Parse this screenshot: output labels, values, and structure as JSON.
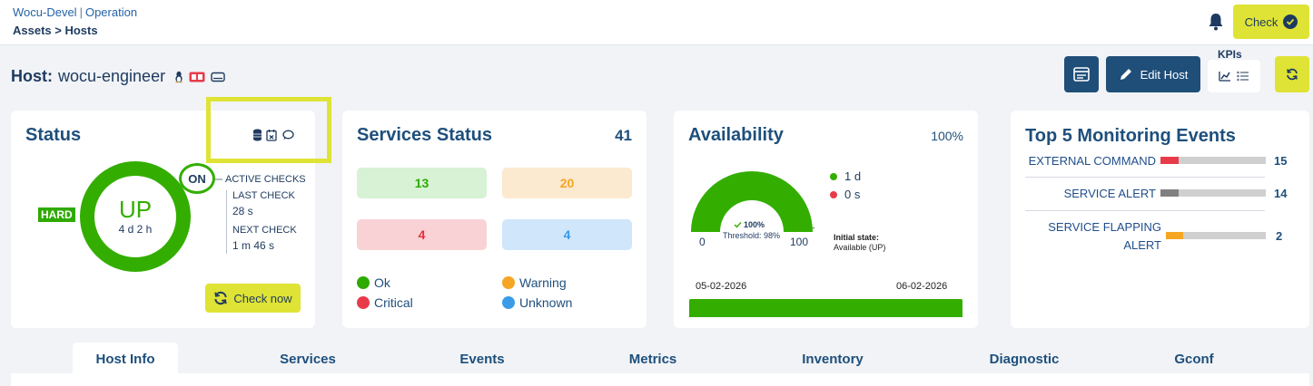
{
  "breadcrumb": {
    "app": "Wocu-Devel",
    "section": "Operation",
    "path": "Assets > Hosts"
  },
  "topbar": {
    "check_label": "Check",
    "bell_icon": "bell-icon"
  },
  "host": {
    "label": "Host:",
    "name": "wocu-engineer",
    "edit_label": "Edit Host",
    "kpis_label": "KPIs"
  },
  "status_card": {
    "title": "Status",
    "state_type": "HARD",
    "state": "UP",
    "duration": "4 d 2 h",
    "active_checks_state": "ON",
    "active_checks_label": "ACTIVE CHECKS",
    "last_check_label": "LAST CHECK",
    "last_check_value": "28 s",
    "next_check_label": "NEXT CHECK",
    "next_check_value": "1 m 46 s",
    "check_now_label": "Check now"
  },
  "services_card": {
    "title": "Services Status",
    "total": "41",
    "counts": {
      "ok": "13",
      "warning": "20",
      "critical": "4",
      "unknown": "4"
    },
    "legend": {
      "ok": "Ok",
      "warning": "Warning",
      "critical": "Critical",
      "unknown": "Unknown"
    },
    "colors": {
      "ok": "#2eaa00",
      "warning": "#f5a623",
      "critical": "#e83b4a",
      "unknown": "#3a9be8"
    }
  },
  "availability_card": {
    "title": "Availability",
    "percent": "100%",
    "up_duration": "1 d",
    "down_duration": "0 s",
    "gauge_value": "100%",
    "threshold": "Threshold: 98%",
    "gauge_min": "0",
    "gauge_max": "100",
    "initial_state_label": "Initial state:",
    "initial_state_value": "Available (UP)",
    "date_start": "05-02-2026",
    "date_end": "06-02-2026",
    "availability_fraction": 1.0
  },
  "events_card": {
    "title": "Top 5 Monitoring Events",
    "events": [
      {
        "label": "EXTERNAL COMMAND",
        "count": "15",
        "color": "#e83b4a",
        "fraction": 0.17
      },
      {
        "label": "SERVICE ALERT",
        "count": "14",
        "color": "#808080",
        "fraction": 0.17
      },
      {
        "label_line1": "SERVICE FLAPPING",
        "label_line2": "ALERT",
        "count": "2",
        "color": "#f5a623",
        "fraction": 0.17
      }
    ]
  },
  "tabs": [
    "Host Info",
    "Services",
    "Events",
    "Metrics",
    "Inventory",
    "Diagnostic",
    "Gconf"
  ],
  "active_tab": "Host Info"
}
